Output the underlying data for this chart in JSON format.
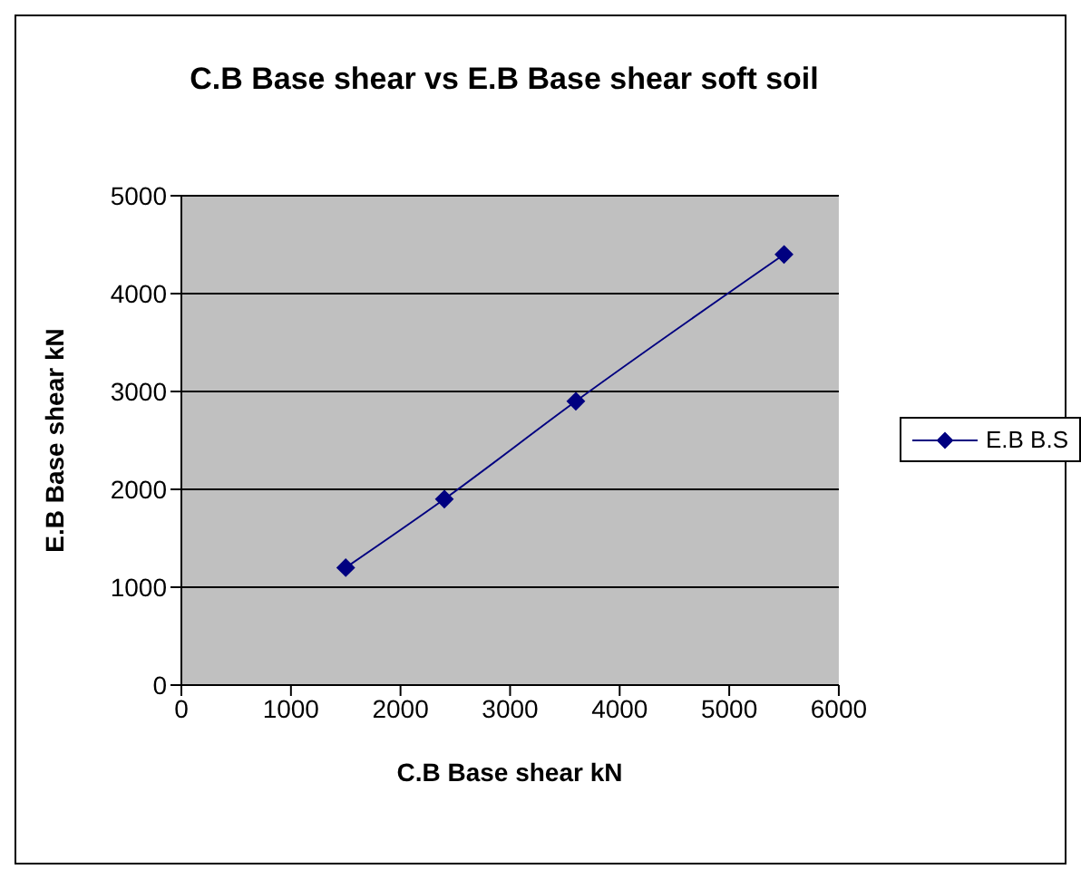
{
  "chart_data": {
    "type": "line",
    "title": "C.B Base shear vs E.B Base shear soft soil",
    "xlabel": "C.B Base shear kN",
    "ylabel": "E.B Base shear kN",
    "x": [
      1500,
      2400,
      3600,
      5500
    ],
    "series": [
      {
        "name": "E.B B.S",
        "color": "#000080",
        "values": [
          1200,
          1900,
          2900,
          4400
        ]
      }
    ],
    "xlim": [
      0,
      6000
    ],
    "xticks": [
      0,
      1000,
      2000,
      3000,
      4000,
      5000,
      6000
    ],
    "ylim": [
      0,
      5000
    ],
    "yticks": [
      0,
      1000,
      2000,
      3000,
      4000,
      5000
    ],
    "grid": "y",
    "legend": "right",
    "marker": "diamond",
    "line_style": "solid"
  }
}
